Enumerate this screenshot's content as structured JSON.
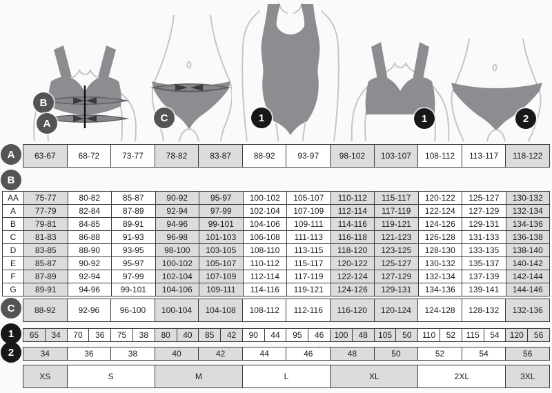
{
  "figures": {
    "bra_measure": {
      "labels": {
        "bust": "B",
        "underbust": "A"
      }
    },
    "panties_measure": {
      "label": "C"
    },
    "bodysuit": {
      "label": "1"
    },
    "bra": {
      "label": "1"
    },
    "panties": {
      "label": "2"
    }
  },
  "tables": {
    "a": {
      "label": "A",
      "cells": [
        "63-67",
        "68-72",
        "73-77",
        "78-82",
        "83-87",
        "88-92",
        "93-97",
        "98-102",
        "103-107",
        "108-112",
        "113-117",
        "118-122"
      ]
    },
    "b": {
      "label": "B",
      "rows": [
        {
          "label": "AA",
          "cells": [
            "75-77",
            "80-82",
            "85-87",
            "90-92",
            "95-97",
            "100-102",
            "105-107",
            "110-112",
            "115-117",
            "120-122",
            "125-127",
            "130-132"
          ]
        },
        {
          "label": "A",
          "cells": [
            "77-79",
            "82-84",
            "87-89",
            "92-94",
            "97-99",
            "102-104",
            "107-109",
            "112-114",
            "117-119",
            "122-124",
            "127-129",
            "132-134"
          ]
        },
        {
          "label": "B",
          "cells": [
            "79-81",
            "84-85",
            "89-91",
            "94-96",
            "99-101",
            "104-106",
            "109-111",
            "114-116",
            "119-121",
            "124-126",
            "129-131",
            "134-136"
          ]
        },
        {
          "label": "C",
          "cells": [
            "81-83",
            "86-88",
            "91-93",
            "96-98",
            "101-103",
            "106-108",
            "111-113",
            "116-118",
            "121-123",
            "126-128",
            "131-133",
            "136-138"
          ]
        },
        {
          "label": "D",
          "cells": [
            "83-85",
            "88-90",
            "93-95",
            "98-100",
            "103-105",
            "108-110",
            "113-115",
            "118-120",
            "123-125",
            "128-130",
            "133-135",
            "138-140"
          ]
        },
        {
          "label": "E",
          "cells": [
            "85-87",
            "90-92",
            "95-97",
            "100-102",
            "105-107",
            "110-112",
            "115-117",
            "120-122",
            "125-127",
            "130-132",
            "135-137",
            "140-142"
          ]
        },
        {
          "label": "F",
          "cells": [
            "87-89",
            "92-94",
            "97-99",
            "102-104",
            "107-109",
            "112-114",
            "117-119",
            "122-124",
            "127-129",
            "132-134",
            "137-139",
            "142-144"
          ]
        },
        {
          "label": "G",
          "cells": [
            "89-91",
            "94-96",
            "99-101",
            "104-106",
            "109-111",
            "114-116",
            "119-121",
            "124-126",
            "129-131",
            "134-136",
            "139-141",
            "144-146"
          ]
        }
      ]
    },
    "c": {
      "label": "C",
      "cells": [
        "88-92",
        "92-96",
        "96-100",
        "100-104",
        "104-108",
        "108-112",
        "112-116",
        "116-120",
        "120-124",
        "124-128",
        "128-132",
        "132-136"
      ]
    },
    "row1": {
      "label": "1",
      "cells": [
        "65",
        "34",
        "70",
        "36",
        "75",
        "38",
        "80",
        "40",
        "85",
        "42",
        "90",
        "44",
        "95",
        "46",
        "100",
        "48",
        "105",
        "50",
        "110",
        "52",
        "115",
        "54",
        "120",
        "56"
      ]
    },
    "row2": {
      "label": "2",
      "cells": [
        "34",
        "36",
        "38",
        "40",
        "42",
        "44",
        "46",
        "48",
        "50",
        "52",
        "54",
        "56"
      ]
    },
    "sizes": {
      "cells": [
        "XS",
        "S",
        "M",
        "L",
        "XL",
        "2XL",
        "3XL"
      ],
      "spans": [
        1,
        2,
        2,
        2,
        2,
        2,
        1
      ]
    }
  },
  "colors": {
    "gray_cell": "#dcdcdc",
    "table_border": "#3a3a3a",
    "badge_dark": "#545457",
    "badge_black": "#18181a",
    "garment": "#8d8d91",
    "measure_band": "#5f5f63"
  }
}
